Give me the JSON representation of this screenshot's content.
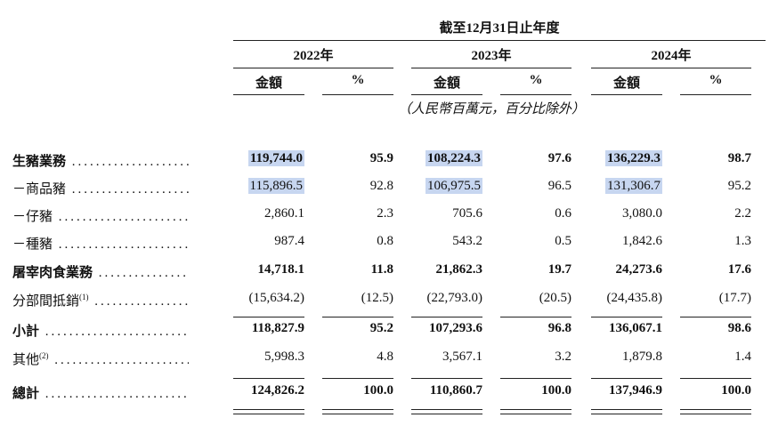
{
  "header": {
    "period": "截至12月31日止年度",
    "years": [
      "2022年",
      "2023年",
      "2024年"
    ],
    "amount_label": "金額",
    "percent_label": "%",
    "unit_note": "（人民幣百萬元，百分比除外）"
  },
  "rows": [
    {
      "label": "生豬業務",
      "sup": "",
      "bold": true,
      "values": [
        "119,744.0",
        "95.9",
        "108,224.3",
        "97.6",
        "136,229.3",
        "98.7"
      ],
      "highlight": [
        true,
        false,
        true,
        false,
        true,
        false
      ]
    },
    {
      "label": "－商品豬",
      "sup": "",
      "bold": false,
      "values": [
        "115,896.5",
        "92.8",
        "106,975.5",
        "96.5",
        "131,306.7",
        "95.2"
      ],
      "highlight": [
        true,
        false,
        true,
        false,
        true,
        false
      ]
    },
    {
      "label": "－仔豬",
      "sup": "",
      "bold": false,
      "values": [
        "2,860.1",
        "2.3",
        "705.6",
        "0.6",
        "3,080.0",
        "2.2"
      ],
      "highlight": [
        false,
        false,
        false,
        false,
        false,
        false
      ]
    },
    {
      "label": "－種豬",
      "sup": "",
      "bold": false,
      "values": [
        "987.4",
        "0.8",
        "543.2",
        "0.5",
        "1,842.6",
        "1.3"
      ],
      "highlight": [
        false,
        false,
        false,
        false,
        false,
        false
      ]
    },
    {
      "label": "屠宰肉食業務",
      "sup": "",
      "bold": true,
      "values": [
        "14,718.1",
        "11.8",
        "21,862.3",
        "19.7",
        "24,273.6",
        "17.6"
      ],
      "highlight": [
        false,
        false,
        false,
        false,
        false,
        false
      ]
    },
    {
      "label": "分部間抵銷",
      "sup": "(1)",
      "bold": false,
      "values": [
        "(15,634.2)",
        "(12.5)",
        "(22,793.0)",
        "(20.5)",
        "(24,435.8)",
        "(17.7)"
      ],
      "highlight": [
        false,
        false,
        false,
        false,
        false,
        false
      ]
    },
    {
      "label": "小計",
      "sup": "",
      "bold": true,
      "values": [
        "118,827.9",
        "95.2",
        "107,293.6",
        "96.8",
        "136,067.1",
        "98.6"
      ],
      "highlight": [
        false,
        false,
        false,
        false,
        false,
        false
      ]
    },
    {
      "label": "其他",
      "sup": "(2)",
      "bold": false,
      "values": [
        "5,998.3",
        "4.8",
        "3,567.1",
        "3.2",
        "1,879.8",
        "1.4"
      ],
      "highlight": [
        false,
        false,
        false,
        false,
        false,
        false
      ]
    },
    {
      "label": "總計",
      "sup": "",
      "bold": true,
      "values": [
        "124,826.2",
        "100.0",
        "110,860.7",
        "100.0",
        "137,946.9",
        "100.0"
      ],
      "highlight": [
        false,
        false,
        false,
        false,
        false,
        false
      ]
    }
  ]
}
